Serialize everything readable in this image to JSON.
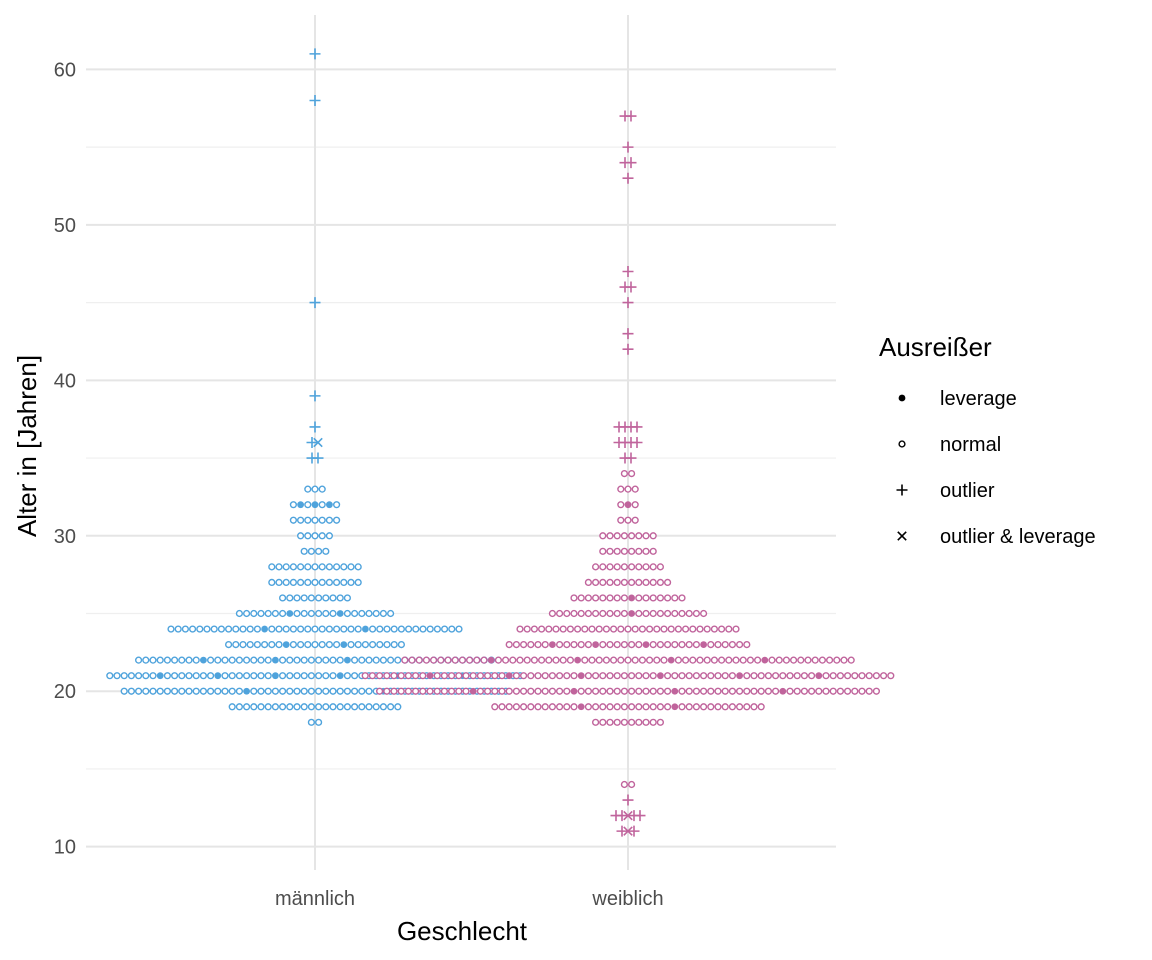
{
  "chart_data": {
    "type": "scatter",
    "subtype": "beeswarm",
    "title": "",
    "xlabel": "Geschlecht",
    "ylabel": "Alter in [Jahren]",
    "categories": [
      "männlich",
      "weiblich"
    ],
    "ylim": [
      8.5,
      63.5
    ],
    "yticks": [
      10,
      20,
      30,
      40,
      50,
      60
    ],
    "grid": true,
    "colors": {
      "männlich": "#4fa3dc",
      "weiblich": "#c0649c"
    },
    "legend": {
      "title": "Ausreißer",
      "placement": "right",
      "entries": [
        {
          "label": "leverage",
          "shape": "filled-circle"
        },
        {
          "label": "normal",
          "shape": "open-circle"
        },
        {
          "label": "outlier",
          "shape": "plus"
        },
        {
          "label": "outlier & leverage",
          "shape": "cross"
        }
      ]
    },
    "series": [
      {
        "category": "männlich",
        "rows": [
          {
            "y": 18,
            "normal": 2,
            "leverage": 0,
            "outlier": 0,
            "outlier_leverage": 0
          },
          {
            "y": 19,
            "normal": 24,
            "leverage": 0,
            "outlier": 0,
            "outlier_leverage": 0
          },
          {
            "y": 20,
            "normal": 52,
            "leverage": 2,
            "outlier": 0,
            "outlier_leverage": 0
          },
          {
            "y": 21,
            "normal": 52,
            "leverage": 6,
            "outlier": 0,
            "outlier_leverage": 0
          },
          {
            "y": 22,
            "normal": 46,
            "leverage": 4,
            "outlier": 0,
            "outlier_leverage": 0
          },
          {
            "y": 23,
            "normal": 23,
            "leverage": 2,
            "outlier": 0,
            "outlier_leverage": 0
          },
          {
            "y": 24,
            "normal": 39,
            "leverage": 2,
            "outlier": 0,
            "outlier_leverage": 0
          },
          {
            "y": 25,
            "normal": 20,
            "leverage": 2,
            "outlier": 0,
            "outlier_leverage": 0
          },
          {
            "y": 26,
            "normal": 10,
            "leverage": 0,
            "outlier": 0,
            "outlier_leverage": 0
          },
          {
            "y": 27,
            "normal": 13,
            "leverage": 0,
            "outlier": 0,
            "outlier_leverage": 0
          },
          {
            "y": 28,
            "normal": 13,
            "leverage": 0,
            "outlier": 0,
            "outlier_leverage": 0
          },
          {
            "y": 29,
            "normal": 4,
            "leverage": 0,
            "outlier": 0,
            "outlier_leverage": 0
          },
          {
            "y": 30,
            "normal": 5,
            "leverage": 0,
            "outlier": 0,
            "outlier_leverage": 0
          },
          {
            "y": 31,
            "normal": 7,
            "leverage": 0,
            "outlier": 0,
            "outlier_leverage": 0
          },
          {
            "y": 32,
            "normal": 4,
            "leverage": 3,
            "outlier": 0,
            "outlier_leverage": 0
          },
          {
            "y": 33,
            "normal": 3,
            "leverage": 0,
            "outlier": 0,
            "outlier_leverage": 0
          },
          {
            "y": 35,
            "normal": 0,
            "leverage": 0,
            "outlier": 2,
            "outlier_leverage": 0
          },
          {
            "y": 36,
            "normal": 0,
            "leverage": 0,
            "outlier": 1,
            "outlier_leverage": 1
          },
          {
            "y": 37,
            "normal": 0,
            "leverage": 0,
            "outlier": 1,
            "outlier_leverage": 0
          },
          {
            "y": 39,
            "normal": 0,
            "leverage": 0,
            "outlier": 1,
            "outlier_leverage": 0
          },
          {
            "y": 45,
            "normal": 0,
            "leverage": 0,
            "outlier": 1,
            "outlier_leverage": 0
          },
          {
            "y": 58,
            "normal": 0,
            "leverage": 0,
            "outlier": 1,
            "outlier_leverage": 0
          },
          {
            "y": 61,
            "normal": 0,
            "leverage": 0,
            "outlier": 1,
            "outlier_leverage": 0
          }
        ]
      },
      {
        "category": "weiblich",
        "rows": [
          {
            "y": 11,
            "normal": 0,
            "leverage": 0,
            "outlier": 2,
            "outlier_leverage": 1
          },
          {
            "y": 12,
            "normal": 0,
            "leverage": 0,
            "outlier": 4,
            "outlier_leverage": 1
          },
          {
            "y": 13,
            "normal": 0,
            "leverage": 0,
            "outlier": 1,
            "outlier_leverage": 0
          },
          {
            "y": 14,
            "normal": 2,
            "leverage": 0,
            "outlier": 0,
            "outlier_leverage": 0
          },
          {
            "y": 18,
            "normal": 10,
            "leverage": 0,
            "outlier": 0,
            "outlier_leverage": 0
          },
          {
            "y": 19,
            "normal": 36,
            "leverage": 2,
            "outlier": 0,
            "outlier_leverage": 0
          },
          {
            "y": 20,
            "normal": 66,
            "leverage": 4,
            "outlier": 0,
            "outlier_leverage": 0
          },
          {
            "y": 21,
            "normal": 68,
            "leverage": 6,
            "outlier": 0,
            "outlier_leverage": 0
          },
          {
            "y": 22,
            "normal": 59,
            "leverage": 4,
            "outlier": 0,
            "outlier_leverage": 0
          },
          {
            "y": 23,
            "normal": 30,
            "leverage": 4,
            "outlier": 0,
            "outlier_leverage": 0
          },
          {
            "y": 24,
            "normal": 31,
            "leverage": 0,
            "outlier": 0,
            "outlier_leverage": 0
          },
          {
            "y": 25,
            "normal": 21,
            "leverage": 1,
            "outlier": 0,
            "outlier_leverage": 0
          },
          {
            "y": 26,
            "normal": 15,
            "leverage": 1,
            "outlier": 0,
            "outlier_leverage": 0
          },
          {
            "y": 27,
            "normal": 12,
            "leverage": 0,
            "outlier": 0,
            "outlier_leverage": 0
          },
          {
            "y": 28,
            "normal": 10,
            "leverage": 0,
            "outlier": 0,
            "outlier_leverage": 0
          },
          {
            "y": 29,
            "normal": 8,
            "leverage": 0,
            "outlier": 0,
            "outlier_leverage": 0
          },
          {
            "y": 30,
            "normal": 8,
            "leverage": 0,
            "outlier": 0,
            "outlier_leverage": 0
          },
          {
            "y": 31,
            "normal": 3,
            "leverage": 0,
            "outlier": 0,
            "outlier_leverage": 0
          },
          {
            "y": 32,
            "normal": 2,
            "leverage": 1,
            "outlier": 0,
            "outlier_leverage": 0
          },
          {
            "y": 33,
            "normal": 3,
            "leverage": 0,
            "outlier": 0,
            "outlier_leverage": 0
          },
          {
            "y": 34,
            "normal": 2,
            "leverage": 0,
            "outlier": 0,
            "outlier_leverage": 0
          },
          {
            "y": 35,
            "normal": 0,
            "leverage": 0,
            "outlier": 2,
            "outlier_leverage": 0
          },
          {
            "y": 36,
            "normal": 0,
            "leverage": 0,
            "outlier": 4,
            "outlier_leverage": 0
          },
          {
            "y": 37,
            "normal": 0,
            "leverage": 0,
            "outlier": 4,
            "outlier_leverage": 0
          },
          {
            "y": 42,
            "normal": 0,
            "leverage": 0,
            "outlier": 1,
            "outlier_leverage": 0
          },
          {
            "y": 43,
            "normal": 0,
            "leverage": 0,
            "outlier": 1,
            "outlier_leverage": 0
          },
          {
            "y": 45,
            "normal": 0,
            "leverage": 0,
            "outlier": 1,
            "outlier_leverage": 0
          },
          {
            "y": 46,
            "normal": 0,
            "leverage": 0,
            "outlier": 2,
            "outlier_leverage": 0
          },
          {
            "y": 47,
            "normal": 0,
            "leverage": 0,
            "outlier": 1,
            "outlier_leverage": 0
          },
          {
            "y": 53,
            "normal": 0,
            "leverage": 0,
            "outlier": 1,
            "outlier_leverage": 0
          },
          {
            "y": 54,
            "normal": 0,
            "leverage": 0,
            "outlier": 2,
            "outlier_leverage": 0
          },
          {
            "y": 55,
            "normal": 0,
            "leverage": 0,
            "outlier": 1,
            "outlier_leverage": 0
          },
          {
            "y": 57,
            "normal": 0,
            "leverage": 0,
            "outlier": 2,
            "outlier_leverage": 0
          }
        ]
      }
    ]
  }
}
